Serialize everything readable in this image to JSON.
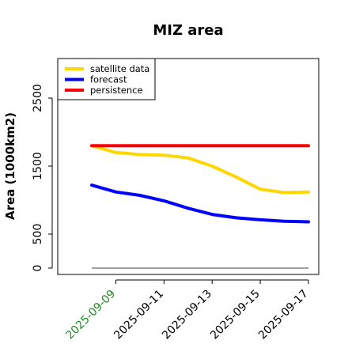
{
  "chart_data": {
    "type": "line",
    "title": "MIZ area",
    "ylabel": "Area (1000km2)",
    "xlabel": "",
    "x": [
      "2025-09-08",
      "2025-09-09",
      "2025-09-10",
      "2025-09-11",
      "2025-09-12",
      "2025-09-13",
      "2025-09-14",
      "2025-09-15",
      "2025-09-16",
      "2025-09-17"
    ],
    "x_tick_labels": [
      "2025-09-09",
      "2025-09-11",
      "2025-09-13",
      "2025-09-15",
      "2025-09-17"
    ],
    "highlight_tick": "2025-09-09",
    "ylim": [
      0,
      3000
    ],
    "y_ticks": [
      0,
      500,
      1500,
      2500
    ],
    "grid": false,
    "legend_position": "top-left",
    "baseline": {
      "value": 0,
      "color": "#808080"
    },
    "series": [
      {
        "name": "satellite data",
        "color": "#FFD700",
        "values": [
          1800,
          1700,
          1670,
          1660,
          1620,
          1500,
          1340,
          1160,
          1110,
          1120
        ]
      },
      {
        "name": "forecast",
        "color": "#0000FF",
        "values": [
          1220,
          1120,
          1070,
          990,
          880,
          790,
          740,
          710,
          690,
          680
        ]
      },
      {
        "name": "persistence",
        "color": "#FF0000",
        "values": [
          1800,
          1800,
          1800,
          1800,
          1800,
          1800,
          1800,
          1800,
          1800,
          1800
        ]
      }
    ]
  }
}
